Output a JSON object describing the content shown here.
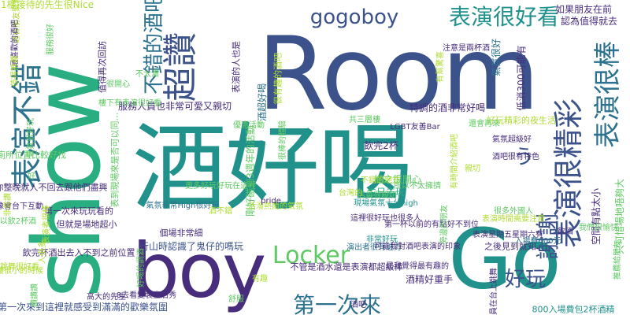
{
  "palette": {
    "dark_purple": "#440154",
    "indigo": "#472d7b",
    "slate_blue": "#3b528b",
    "steel_blue": "#2c728e",
    "teal": "#21918c",
    "sea_green": "#28ae80",
    "green": "#5ec962",
    "lime": "#addc30",
    "yellow": "#fde725",
    "background": "#ffffff"
  },
  "words": [
    {
      "text": "Room",
      "color": "#3b528b"
    },
    {
      "text": "show",
      "color": "#28ae80"
    },
    {
      "text": "酒好喝",
      "color": "#21918c"
    },
    {
      "text": "boy",
      "color": "#472d7b"
    },
    {
      "text": "Go",
      "color": "#21918c"
    },
    {
      "text": "超讚",
      "color": "#3b528b"
    },
    {
      "text": "表演不錯",
      "color": "#2c728e"
    },
    {
      "text": "表演很好看",
      "color": "#21918c"
    },
    {
      "text": "表演很精彩",
      "color": "#3b528b"
    },
    {
      "text": "表演很棒",
      "color": "#2c728e"
    },
    {
      "text": "gogoboy",
      "color": "#3b528b"
    },
    {
      "text": "不錯的酒吧",
      "color": "#2c728e"
    },
    {
      "text": "Locker",
      "color": "#5ec962"
    },
    {
      "text": "第一次來",
      "color": "#2c728e"
    },
    {
      "text": "謝謝",
      "color": "#3b528b"
    },
    {
      "text": "好玩",
      "color": "#3b528b"
    },
    {
      "text": "う",
      "color": "#3b528b"
    },
    {
      "text": "1樓接待的先生很Nice",
      "color": "#addc30"
    },
    {
      "text": "值得再次回訪",
      "color": "#472d7b"
    },
    {
      "text": "服務人員也非常可愛又親切",
      "color": "#472d7b"
    },
    {
      "text": "廁所位置比較好找",
      "color": "#5ec962"
    },
    {
      "text": "你整晚就人不回去跟他們盡興",
      "color": "#472d7b"
    },
    {
      "text": "第一次來玩玩看的",
      "color": "#472d7b"
    },
    {
      "text": "但就是場地超小",
      "color": "#472d7b"
    },
    {
      "text": "飲完杯酒出去入不到之前位置",
      "color": "#472d7b"
    },
    {
      "text": "第一次來到這裡就感受到滿滿的歡樂氛圍",
      "color": "#3b528b"
    },
    {
      "text": "行山時認識了鬼仔的嗎玩",
      "color": "#3b528b"
    },
    {
      "text": "不管是酒水還是表演都超級棒",
      "color": "#472d7b"
    },
    {
      "text": "個場非常細",
      "color": "#472d7b"
    },
    {
      "text": "特調的酒非常好喝",
      "color": "#472d7b"
    },
    {
      "text": "總之很開心",
      "color": "#5ec962"
    },
    {
      "text": "生日去玩",
      "color": "#28ae80"
    },
    {
      "text": "飲完2杯",
      "color": "#472d7b"
    },
    {
      "text": "之後見到就知",
      "color": "#472d7b"
    },
    {
      "text": "酒精好重手",
      "color": "#472d7b"
    },
    {
      "text": "表演星期五星期六有",
      "color": "#472d7b"
    },
    {
      "text": "800入場費包2杯酒精",
      "color": "#21918c"
    },
    {
      "text": "入場費600元",
      "color": "#2c728e"
    },
    {
      "text": "低消300可能有",
      "color": "#472d7b"
    },
    {
      "text": "如果朋友在前",
      "color": "#472d7b"
    },
    {
      "text": "認為值得就去",
      "color": "#472d7b"
    },
    {
      "text": "氣氛很好",
      "color": "#2c728e"
    },
    {
      "text": "表演的人也是",
      "color": "#472d7b"
    },
    {
      "text": "好玩精彩的夜生活",
      "color": "#addc30"
    },
    {
      "text": "飲酒",
      "color": "#472d7b"
    },
    {
      "text": "只可惜場地唔夠大",
      "color": "#5ec962"
    },
    {
      "text": "空間有點太小",
      "color": "#472d7b"
    },
    {
      "text": "表到現場來是否可以同…",
      "color": "#5ec962"
    },
    {
      "text": "剛好碰到3週年的活動",
      "color": "#5ec962"
    },
    {
      "text": "很有趣的酒吧",
      "color": "#addc30"
    },
    {
      "text": "可以飲2杯酒",
      "color": "#5ec962"
    },
    {
      "text": "想像會台下互動",
      "color": "#472d7b"
    },
    {
      "text": "8去看變裝皇后秀",
      "color": "#472d7b"
    },
    {
      "text": "不太濃",
      "color": "#5ec962"
    },
    {
      "text": "有幫驚喜",
      "color": "#addc30"
    },
    {
      "text": "非常讚",
      "color": "#addc30"
    },
    {
      "text": "非常好玩",
      "color": "#21918c"
    },
    {
      "text": "演出者很有魅力",
      "color": "#2c728e"
    },
    {
      "text": "酒超好喝",
      "color": "#2c728e"
    },
    {
      "text": "活潑熱鬧的氣氛",
      "color": "#addc30"
    },
    {
      "text": "注意是兩杯酒",
      "color": "#472d7b"
    },
    {
      "text": "LGBT友善Bar",
      "color": "#472d7b"
    },
    {
      "text": "共三層樓",
      "color": "#5ec962"
    },
    {
      "text": "所以不太擁擠",
      "color": "#5ec962"
    },
    {
      "text": "氣氛非常High很好玩",
      "color": "#2c728e"
    },
    {
      "text": "現場氣氛十分high",
      "color": "#21918c"
    },
    {
      "text": "氣氛超級好",
      "color": "#472d7b"
    },
    {
      "text": "第一杯以前的有點好不到位",
      "color": "#472d7b"
    },
    {
      "text": "是我覺得最有趣的",
      "color": "#472d7b"
    },
    {
      "text": "可能我對酒吧表演的印象",
      "color": "#472d7b"
    },
    {
      "text": "有時間介紹酒吧",
      "color": "#addc30"
    },
    {
      "text": "旁邊的朋友",
      "color": "#5ec962"
    },
    {
      "text": "這裡很好玩也很多人",
      "color": "#472d7b"
    },
    {
      "text": "更多好玩好玩在這裡",
      "color": "#5ec962"
    },
    {
      "text": "樓下有表演很好看",
      "color": "#5ec962"
    },
    {
      "text": "優惠活動",
      "color": "#5ec962"
    },
    {
      "text": "不錯的地方",
      "color": "#addc30"
    },
    {
      "text": "店員很親切",
      "color": "#5ec962"
    },
    {
      "text": "很多外國人",
      "color": "#5ec962"
    },
    {
      "text": "表演時間需要注意",
      "color": "#addc30"
    },
    {
      "text": "還會再來",
      "color": "#5ec962"
    },
    {
      "text": "酒吧很有特色",
      "color": "#472d7b"
    },
    {
      "text": "推薦給朋友",
      "color": "#5ec962"
    },
    {
      "text": "一樓很小的時候",
      "color": "#addc30"
    },
    {
      "text": "演員在台上跳舞",
      "color": "#472d7b"
    },
    {
      "text": "跳舞很好看",
      "color": "#addc30"
    },
    {
      "text": "我們很愉快",
      "color": "#5ec962"
    },
    {
      "text": "適合朋友聚會",
      "color": "#addc30"
    },
    {
      "text": "很開心",
      "color": "#5ec962"
    },
    {
      "text": "最喜歡的酒吧",
      "color": "#472d7b"
    },
    {
      "text": "值得推薦",
      "color": "#addc30"
    },
    {
      "text": "氣氛很好玩",
      "color": "#5ec962"
    },
    {
      "text": "人很多",
      "color": "#addc30"
    },
    {
      "text": "服務很好",
      "color": "#5ec962"
    },
    {
      "text": "表演者很棒",
      "color": "#addc30"
    },
    {
      "text": "讚讚讚",
      "color": "#5ec962"
    },
    {
      "text": "pride",
      "color": "#472d7b"
    },
    {
      "text": "酒不錯",
      "color": "#addc30"
    },
    {
      "text": "好喝的調酒",
      "color": "#5ec962"
    },
    {
      "text": "有趣",
      "color": "#addc30"
    },
    {
      "text": "很棒的體驗",
      "color": "#5ec962"
    },
    {
      "text": "高大的先生",
      "color": "#472d7b"
    },
    {
      "text": "好",
      "color": "#5ec962"
    },
    {
      "text": "台灣的",
      "color": "#addc30"
    },
    {
      "text": "舒服",
      "color": "#5ec962"
    },
    {
      "text": "酒吧",
      "color": "#472d7b"
    },
    {
      "text": "親切",
      "color": "#addc30"
    }
  ]
}
